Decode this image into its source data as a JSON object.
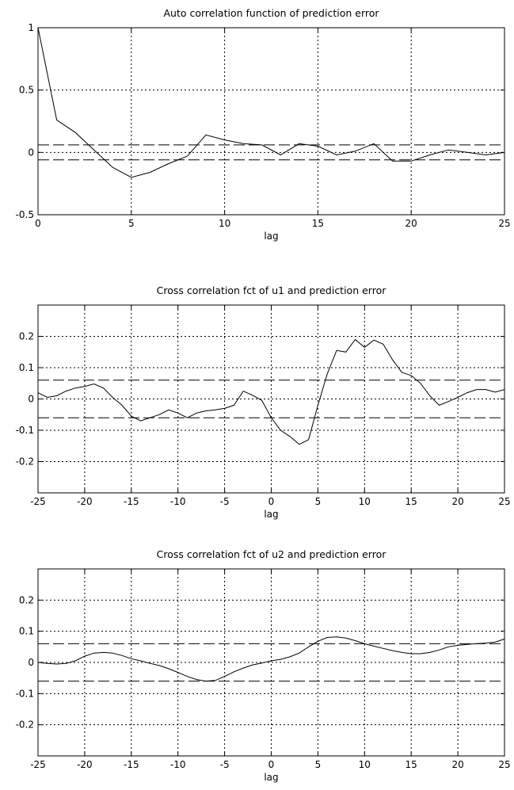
{
  "chart_data": [
    {
      "type": "line",
      "title": "Auto correlation function of prediction error",
      "xlabel": "lag",
      "ylabel": "",
      "xlim": [
        0,
        25
      ],
      "ylim": [
        -0.5,
        1
      ],
      "xticks": [
        0,
        5,
        10,
        15,
        20,
        25
      ],
      "yticks": [
        -0.5,
        0,
        0.5,
        1
      ],
      "tick_labels_x": [
        "0",
        "5",
        "10",
        "15",
        "20",
        "25"
      ],
      "tick_labels_y": [
        "-0.5",
        "0",
        "0.5",
        "1"
      ],
      "grid": true,
      "confidence_band": [
        -0.06,
        0.06
      ],
      "series": [
        {
          "x": [
            0,
            1,
            2,
            3,
            4,
            5,
            6,
            7,
            8,
            9,
            10,
            11,
            12,
            13,
            14,
            15,
            16,
            17,
            18,
            19,
            20,
            21,
            22,
            23,
            24,
            25
          ],
          "values": [
            1.0,
            0.26,
            0.16,
            0.02,
            -0.12,
            -0.2,
            -0.16,
            -0.09,
            -0.03,
            0.14,
            0.1,
            0.07,
            0.06,
            -0.02,
            0.07,
            0.05,
            -0.02,
            0.01,
            0.07,
            -0.07,
            -0.07,
            -0.02,
            0.02,
            0.0,
            -0.02,
            0.0
          ]
        }
      ]
    },
    {
      "type": "line",
      "title": "Cross correlation fct of u1 and prediction error",
      "xlabel": "lag",
      "ylabel": "",
      "xlim": [
        -25,
        25
      ],
      "ylim": [
        -0.3,
        0.3
      ],
      "xticks": [
        -25,
        -20,
        -15,
        -10,
        -5,
        0,
        5,
        10,
        15,
        20,
        25
      ],
      "yticks": [
        -0.2,
        -0.1,
        0,
        0.1,
        0.2
      ],
      "tick_labels_x": [
        "-25",
        "-20",
        "-15",
        "-10",
        "-5",
        "0",
        "5",
        "10",
        "15",
        "20",
        "25"
      ],
      "tick_labels_y": [
        "-0.2",
        "-0.1",
        "0",
        "0.1",
        "0.2"
      ],
      "grid": true,
      "confidence_band": [
        -0.06,
        0.06
      ],
      "series": [
        {
          "x": [
            -25,
            -24,
            -23,
            -22,
            -21,
            -20,
            -19,
            -18,
            -17,
            -16,
            -15,
            -14,
            -13,
            -12,
            -11,
            -10,
            -9,
            -8,
            -7,
            -6,
            -5,
            -4,
            -3,
            -2,
            -1,
            0,
            1,
            2,
            3,
            4,
            5,
            6,
            7,
            8,
            9,
            10,
            11,
            12,
            13,
            14,
            15,
            16,
            17,
            18,
            19,
            20,
            21,
            22,
            23,
            24,
            25
          ],
          "values": [
            0.02,
            0.005,
            0.01,
            0.025,
            0.035,
            0.04,
            0.048,
            0.035,
            0.005,
            -0.02,
            -0.055,
            -0.07,
            -0.06,
            -0.05,
            -0.035,
            -0.045,
            -0.06,
            -0.045,
            -0.038,
            -0.035,
            -0.03,
            -0.02,
            0.025,
            0.012,
            -0.005,
            -0.06,
            -0.1,
            -0.12,
            -0.145,
            -0.13,
            -0.02,
            0.08,
            0.155,
            0.15,
            0.19,
            0.165,
            0.188,
            0.175,
            0.125,
            0.085,
            0.075,
            0.05,
            0.01,
            -0.02,
            -0.008,
            0.005,
            0.02,
            0.03,
            0.03,
            0.022,
            0.03
          ]
        }
      ]
    },
    {
      "type": "line",
      "title": "Cross correlation fct of u2 and prediction error",
      "xlabel": "lag",
      "ylabel": "",
      "xlim": [
        -25,
        25
      ],
      "ylim": [
        -0.3,
        0.3
      ],
      "xticks": [
        -25,
        -20,
        -15,
        -10,
        -5,
        0,
        5,
        10,
        15,
        20,
        25
      ],
      "yticks": [
        -0.2,
        -0.1,
        0,
        0.1,
        0.2
      ],
      "tick_labels_x": [
        "-25",
        "-20",
        "-15",
        "-10",
        "-5",
        "0",
        "5",
        "10",
        "15",
        "20",
        "25"
      ],
      "tick_labels_y": [
        "-0.2",
        "-0.1",
        "0",
        "0.1",
        "0.2"
      ],
      "grid": true,
      "confidence_band": [
        -0.06,
        0.06
      ],
      "series": [
        {
          "x": [
            -25,
            -24,
            -23,
            -22,
            -21,
            -20,
            -19,
            -18,
            -17,
            -16,
            -15,
            -14,
            -13,
            -12,
            -11,
            -10,
            -9,
            -8,
            -7,
            -6,
            -5,
            -4,
            -3,
            -2,
            -1,
            0,
            1,
            2,
            3,
            4,
            5,
            6,
            7,
            8,
            9,
            10,
            11,
            12,
            13,
            14,
            15,
            16,
            17,
            18,
            19,
            20,
            21,
            22,
            23,
            24,
            25
          ],
          "values": [
            0.0,
            -0.003,
            -0.005,
            -0.003,
            0.005,
            0.02,
            0.03,
            0.032,
            0.03,
            0.022,
            0.012,
            0.005,
            -0.003,
            -0.01,
            -0.02,
            -0.032,
            -0.045,
            -0.055,
            -0.06,
            -0.058,
            -0.045,
            -0.03,
            -0.018,
            -0.008,
            -0.002,
            0.005,
            0.01,
            0.018,
            0.03,
            0.05,
            0.068,
            0.08,
            0.082,
            0.078,
            0.07,
            0.06,
            0.052,
            0.045,
            0.038,
            0.032,
            0.028,
            0.028,
            0.032,
            0.04,
            0.05,
            0.055,
            0.058,
            0.06,
            0.062,
            0.065,
            0.075
          ]
        }
      ]
    }
  ]
}
